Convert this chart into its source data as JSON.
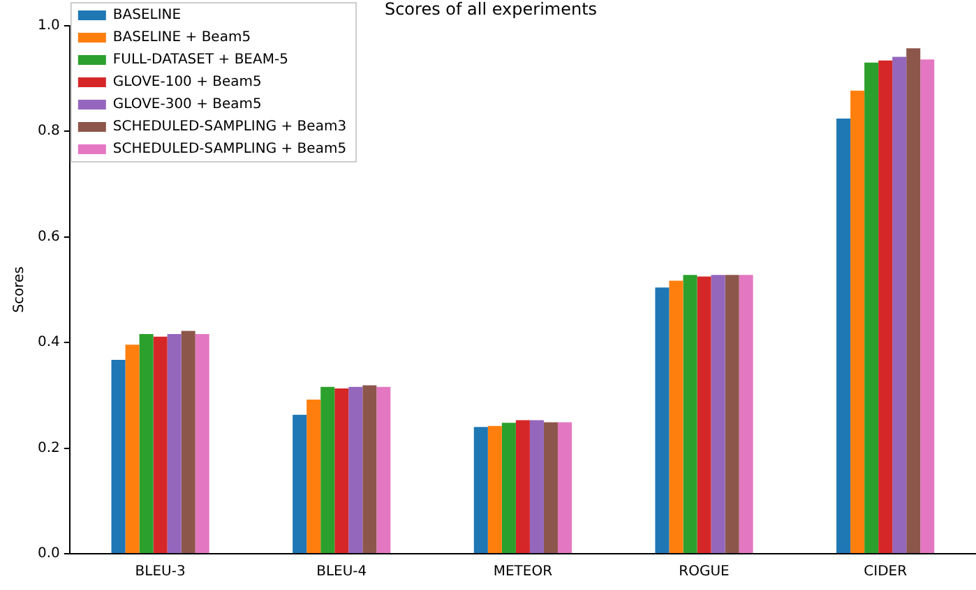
{
  "chart_data": {
    "type": "bar",
    "title": "Scores of all experiments",
    "ylabel": "Scores",
    "categories": [
      "BLEU-3",
      "BLEU-4",
      "METEOR",
      "ROGUE",
      "CIDER"
    ],
    "series": [
      {
        "name": "BASELINE",
        "color": "#1f77b4",
        "values": [
          0.367,
          0.263,
          0.24,
          0.504,
          0.824
        ]
      },
      {
        "name": "BASELINE + Beam5",
        "color": "#ff7f0e",
        "values": [
          0.396,
          0.292,
          0.242,
          0.517,
          0.877
        ]
      },
      {
        "name": "FULL-DATASET + BEAM-5",
        "color": "#2ca02c",
        "values": [
          0.416,
          0.316,
          0.248,
          0.528,
          0.93
        ]
      },
      {
        "name": "GLOVE-100 + Beam5",
        "color": "#d62728",
        "values": [
          0.411,
          0.313,
          0.253,
          0.525,
          0.934
        ]
      },
      {
        "name": "GLOVE-300 + Beam5",
        "color": "#9467bd",
        "values": [
          0.416,
          0.316,
          0.253,
          0.528,
          0.941
        ]
      },
      {
        "name": "SCHEDULED-SAMPLING + Beam3",
        "color": "#8c564b",
        "values": [
          0.422,
          0.319,
          0.249,
          0.528,
          0.957
        ]
      },
      {
        "name": "SCHEDULED-SAMPLING + Beam5",
        "color": "#e377c2",
        "values": [
          0.416,
          0.316,
          0.249,
          0.528,
          0.936
        ]
      }
    ],
    "ylim": [
      0,
      1
    ],
    "yticks": [
      {
        "value": 0,
        "label": "0.0"
      },
      {
        "value": 0.2,
        "label": "0.2"
      },
      {
        "value": 0.4,
        "label": "0.4"
      },
      {
        "value": 0.6,
        "label": "0.6"
      },
      {
        "value": 0.8,
        "label": "0.8"
      },
      {
        "value": 1,
        "label": "1.0"
      }
    ],
    "grid": false,
    "legend": "top left"
  }
}
